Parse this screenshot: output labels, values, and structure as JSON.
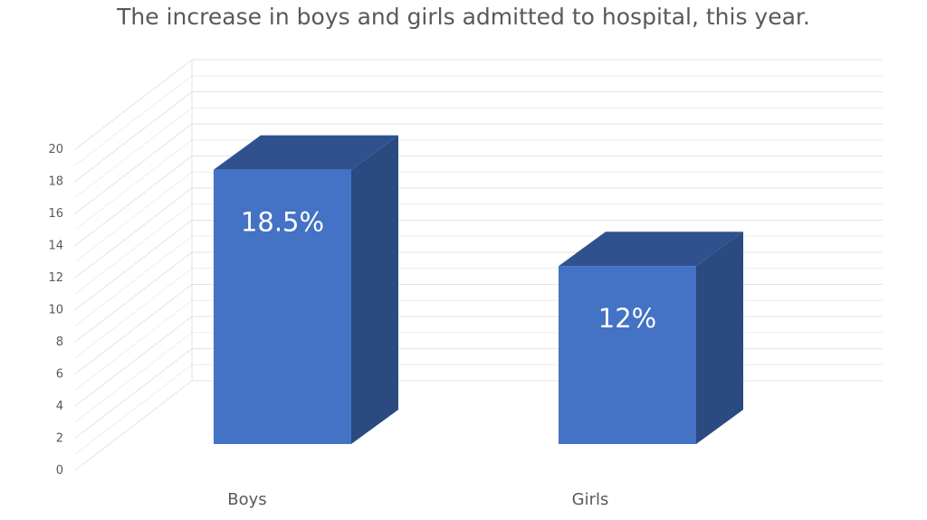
{
  "chart_data": {
    "type": "bar",
    "title": "The increase in boys and girls admitted to hospital, this year.",
    "categories": [
      "Boys",
      "Girls"
    ],
    "values": [
      18.5,
      12
    ],
    "data_labels": [
      "18.5%",
      "12%"
    ],
    "ylim": [
      0,
      20
    ],
    "yticks": [
      0,
      2,
      4,
      6,
      8,
      10,
      12,
      14,
      16,
      18,
      20
    ],
    "xlabel": "",
    "ylabel": "",
    "grid": true,
    "style": "3d-column",
    "colors": {
      "front": "#4472c4",
      "top": "#2f528f",
      "side": "#2a4a80",
      "grid": "#e3e3e3",
      "text": "#595959"
    }
  }
}
